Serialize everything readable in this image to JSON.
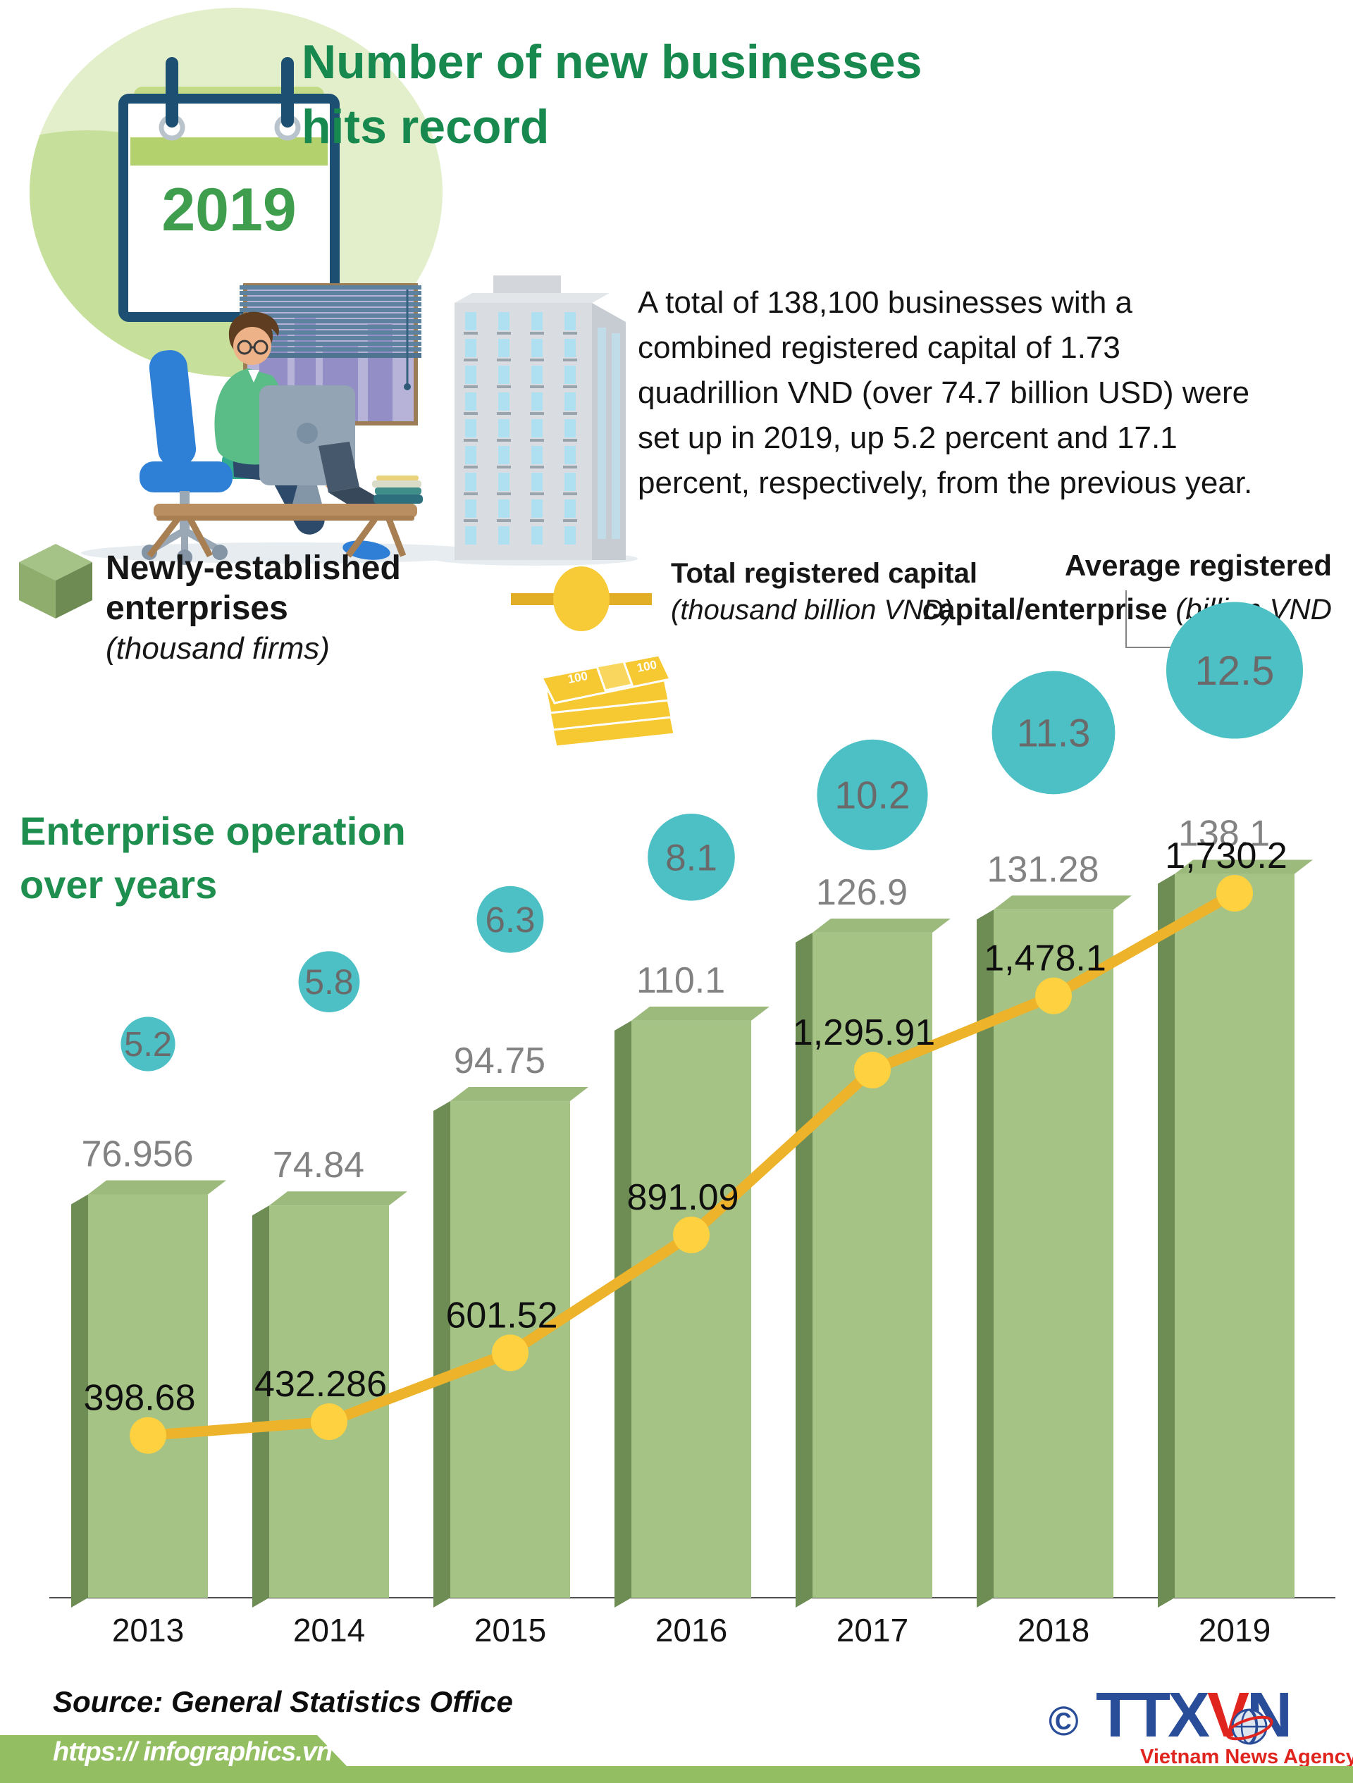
{
  "header": {
    "year_badge": "2019",
    "title_line1": "Number of new businesses",
    "title_line2": "hits record",
    "intro_lines": [
      "A total of 138,100 businesses with a",
      "combined registered capital of 1.73",
      "quadrillion VND (over 74.7 billion USD) were",
      "set up in 2019, up 5.2 percent and 17.1",
      "percent, respectively, from the previous year."
    ]
  },
  "legend": {
    "bars": {
      "label_line1": "Newly-established",
      "label_line2": "enterprises",
      "unit": "(thousand firms)"
    },
    "line": {
      "label": "Total registered capital",
      "unit": "(thousand billion VND)"
    },
    "bubbles": {
      "label_line1": "Average registered",
      "label_line2": "capital/enterprise",
      "unit": "(billion VND"
    }
  },
  "section_title": {
    "line1": "Enterprise operation",
    "line2": "over years"
  },
  "chart_data": {
    "type": "bar",
    "title": "Enterprise operation over years",
    "categories": [
      "2013",
      "2014",
      "2015",
      "2016",
      "2017",
      "2018",
      "2019"
    ],
    "series": [
      {
        "name": "Newly-established enterprises (thousand firms)",
        "type": "bar",
        "values": [
          76.956,
          74.84,
          94.75,
          110.1,
          126.9,
          131.28,
          138.1
        ],
        "labels": [
          "76.956",
          "74.84",
          "94.75",
          "110.1",
          "126.9",
          "131.28",
          "138.1"
        ]
      },
      {
        "name": "Total registered capital (thousand billion VND)",
        "type": "line",
        "values": [
          398.68,
          432.286,
          601.52,
          891.09,
          1295.91,
          1478.1,
          1730.2
        ],
        "labels": [
          "398.68",
          "432.286",
          "601.52",
          "891.09",
          "1,295.91",
          "1,478.1",
          "1,730.2"
        ]
      },
      {
        "name": "Average registered capital/enterprise (billion VND)",
        "type": "bubble",
        "values": [
          5.2,
          5.8,
          6.3,
          8.1,
          10.2,
          11.3,
          12.5
        ],
        "labels": [
          "5.2",
          "5.8",
          "6.3",
          "8.1",
          "10.2",
          "11.3",
          "12.5"
        ]
      }
    ],
    "bar_axis_range": [
      0,
      138.1
    ],
    "line_axis_range": [
      0,
      1730.2
    ],
    "grid": false,
    "legend_position": "top",
    "colors": {
      "bar_front": "#a6c386",
      "bar_top": "#9cba7c",
      "bar_side": "#6e8d54",
      "line": "#ecb32b",
      "marker": "#fdd140",
      "bubble": "#4cc0c5",
      "bubble_text": "#6a6a6a",
      "bar_label": "#828282",
      "line_label": "#0f0f0f",
      "axis": "#4f4f4f",
      "year_label": "#141414"
    }
  },
  "footer": {
    "source": "Source: General Statistics Office",
    "url": "https:// infographics.vn",
    "logo": {
      "copyright": "©",
      "part1": "TTX",
      "part2": "V",
      "part3": "N",
      "subtitle": "Vietnam News Agency"
    }
  }
}
